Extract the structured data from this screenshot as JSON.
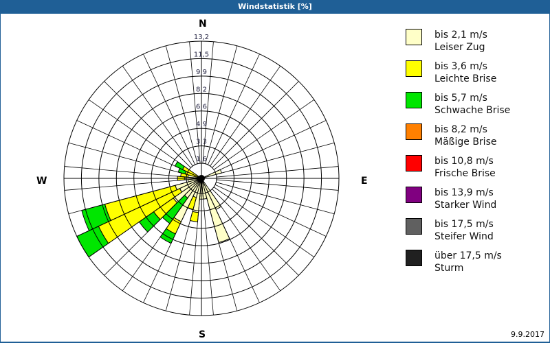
{
  "header": {
    "title": "Windstatistik [%]"
  },
  "compass": {
    "n": "N",
    "e": "E",
    "s": "S",
    "w": "W"
  },
  "footer": {
    "date": "9.9.2017"
  },
  "legend": [
    {
      "speed": "bis 2,1 m/s",
      "name": "Leiser Zug",
      "color": "#ffffc8"
    },
    {
      "speed": "bis 3,6 m/s",
      "name": "Leichte Brise",
      "color": "#ffff00"
    },
    {
      "speed": "bis 5,7 m/s",
      "name": "Schwache Brise",
      "color": "#00e600"
    },
    {
      "speed": "bis 8,2 m/s",
      "name": "Mäßige Brise",
      "color": "#ff8000"
    },
    {
      "speed": "bis 10,8 m/s",
      "name": "Frische Brise",
      "color": "#ff0000"
    },
    {
      "speed": "bis 13,9 m/s",
      "name": "Starker Wind",
      "color": "#800080"
    },
    {
      "speed": "bis 17,5 m/s",
      "name": "Steifer Wind",
      "color": "#606060"
    },
    {
      "speed": "über 17,5 m/s",
      "name": "Sturm",
      "color": "#202020"
    }
  ],
  "chart_data": {
    "type": "polar-stacked-bar (wind rose)",
    "title": "Windstatistik [%]",
    "radial_ticks": [
      "1,6",
      "3,3",
      "4,9",
      "6,6",
      "8,2",
      "9,9",
      "11,5",
      "13,2"
    ],
    "radial_max": 13.2,
    "sector_width_deg": 10,
    "series_names": [
      "bis 2,1 m/s",
      "bis 3,6 m/s",
      "bis 5,7 m/s",
      "bis 8,2 m/s",
      "bis 10,8 m/s",
      "bis 13,9 m/s",
      "bis 17,5 m/s",
      "über 17,5 m/s"
    ],
    "directions": [
      {
        "deg": 70,
        "cumulative": [
          2.0
        ]
      },
      {
        "deg": 150,
        "cumulative": [
          3.3
        ]
      },
      {
        "deg": 160,
        "cumulative": [
          6.4
        ]
      },
      {
        "deg": 170,
        "cumulative": [
          2.0
        ]
      },
      {
        "deg": 180,
        "cumulative": [
          2.0
        ]
      },
      {
        "deg": 190,
        "cumulative": [
          3.3,
          4.2
        ]
      },
      {
        "deg": 200,
        "cumulative": [
          1.9,
          3.1
        ]
      },
      {
        "deg": 210,
        "cumulative": [
          4.6,
          5.9,
          6.9
        ]
      },
      {
        "deg": 220,
        "cumulative": [
          2.3,
          2.3,
          5.3
        ]
      },
      {
        "deg": 230,
        "cumulative": [
          3.3,
          5.6,
          7.3
        ]
      },
      {
        "deg": 240,
        "cumulative": [
          2.3,
          10.9,
          13.2
        ]
      },
      {
        "deg": 250,
        "cumulative": [
          2.6,
          9.6,
          11.9
        ]
      },
      {
        "deg": 260,
        "cumulative": [
          1.3
        ]
      },
      {
        "deg": 270,
        "cumulative": [
          1.6,
          2.3
        ]
      },
      {
        "deg": 280,
        "cumulative": [
          1.3,
          2.0
        ]
      },
      {
        "deg": 290,
        "cumulative": [
          0.3,
          1.6,
          2.3
        ]
      },
      {
        "deg": 300,
        "cumulative": [
          0.3,
          2.0,
          2.8
        ]
      }
    ]
  }
}
